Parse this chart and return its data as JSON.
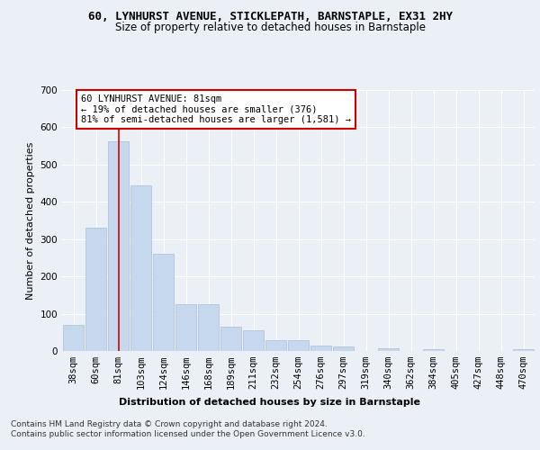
{
  "title1": "60, LYNHURST AVENUE, STICKLEPATH, BARNSTAPLE, EX31 2HY",
  "title2": "Size of property relative to detached houses in Barnstaple",
  "xlabel": "Distribution of detached houses by size in Barnstaple",
  "ylabel": "Number of detached properties",
  "categories": [
    "38sqm",
    "60sqm",
    "81sqm",
    "103sqm",
    "124sqm",
    "146sqm",
    "168sqm",
    "189sqm",
    "211sqm",
    "232sqm",
    "254sqm",
    "276sqm",
    "297sqm",
    "319sqm",
    "340sqm",
    "362sqm",
    "384sqm",
    "405sqm",
    "427sqm",
    "448sqm",
    "470sqm"
  ],
  "values": [
    70,
    330,
    562,
    443,
    260,
    125,
    125,
    65,
    55,
    30,
    30,
    15,
    12,
    0,
    7,
    0,
    5,
    0,
    0,
    0,
    5
  ],
  "bar_color": "#c5d8ed",
  "bar_edge_color": "#aabdd8",
  "highlight_index": 2,
  "highlight_line_color": "#cc0000",
  "annotation_text": "60 LYNHURST AVENUE: 81sqm\n← 19% of detached houses are smaller (376)\n81% of semi-detached houses are larger (1,581) →",
  "annotation_box_color": "#ffffff",
  "annotation_border_color": "#cc0000",
  "ylim": [
    0,
    700
  ],
  "yticks": [
    0,
    100,
    200,
    300,
    400,
    500,
    600,
    700
  ],
  "footer_text": "Contains HM Land Registry data © Crown copyright and database right 2024.\nContains public sector information licensed under the Open Government Licence v3.0.",
  "bg_color": "#eaf0f6",
  "plot_bg_color": "#eaf0f6",
  "grid_color": "#ffffff",
  "title1_fontsize": 9,
  "title2_fontsize": 8.5,
  "axis_label_fontsize": 8,
  "tick_fontsize": 7.5,
  "annotation_fontsize": 7.5,
  "footer_fontsize": 6.5
}
